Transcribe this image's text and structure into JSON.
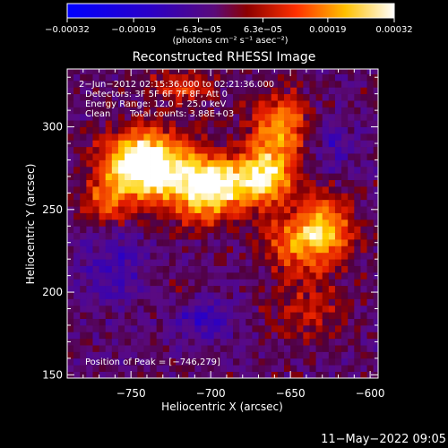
{
  "chart_data": {
    "type": "heatmap",
    "title": "Reconstructed RHESSI Image",
    "xlabel": "Heliocentric X (arcsec)",
    "ylabel": "Heliocentric Y (arcsec)",
    "xlim": [
      -790,
      -595
    ],
    "ylim": [
      148,
      335
    ],
    "x_ticks": [
      -750,
      -700,
      -650,
      -600
    ],
    "x_tick_labels": [
      "−750",
      "−700",
      "−650",
      "−600"
    ],
    "y_ticks": [
      150,
      200,
      250,
      300
    ],
    "y_tick_labels": [
      "150",
      "200",
      "250",
      "300"
    ],
    "colorbar": {
      "range": [
        -0.00032,
        0.00032
      ],
      "ticks": [
        -0.00032,
        -0.00019,
        -6.3e-05,
        6.3e-05,
        0.00019,
        0.00032
      ],
      "tick_labels": [
        "−0.00032",
        "−0.00019",
        "−6.3e−05",
        "6.3e−05",
        "0.00019",
        "0.00032"
      ],
      "unit_label": "(photons cm⁻² s⁻¹ asec⁻²)"
    },
    "annotations": [
      "2−Jun−2012 02:15:36.000 to 02:21:36.000",
      "Detectors: 3F 5F 6F 7F 8F, Att 0",
      "Energy Range: 12.0 − 25.0 keV",
      "Clean",
      "Total counts: 3.88E+03"
    ],
    "peak_text": "Position of Peak = [−746,279]",
    "peak": [
      -746,
      279
    ],
    "sources": [
      {
        "x": -746,
        "y": 279,
        "sx": 15,
        "sy": 12,
        "amp": 1.0
      },
      {
        "x": -725,
        "y": 272,
        "sx": 22,
        "sy": 16,
        "amp": 0.7
      },
      {
        "x": -700,
        "y": 258,
        "sx": 14,
        "sy": 12,
        "amp": 0.6
      },
      {
        "x": -683,
        "y": 268,
        "sx": 22,
        "sy": 9,
        "amp": 0.55
      },
      {
        "x": -655,
        "y": 300,
        "sx": 13,
        "sy": 15,
        "amp": 0.65
      },
      {
        "x": -665,
        "y": 272,
        "sx": 11,
        "sy": 14,
        "amp": 0.6
      },
      {
        "x": -628,
        "y": 238,
        "sx": 12,
        "sy": 14,
        "amp": 0.75
      },
      {
        "x": -648,
        "y": 230,
        "sx": 14,
        "sy": 12,
        "amp": 0.55
      },
      {
        "x": -720,
        "y": 325,
        "sx": 14,
        "sy": 8,
        "amp": 0.4
      },
      {
        "x": -765,
        "y": 256,
        "sx": 10,
        "sy": 10,
        "amp": 0.5
      },
      {
        "x": -640,
        "y": 190,
        "sx": 18,
        "sy": 14,
        "amp": 0.3
      },
      {
        "x": -715,
        "y": 195,
        "sx": 14,
        "sy": 10,
        "amp": 0.3
      }
    ],
    "negative_sources": [
      {
        "x": -708,
        "y": 188,
        "sx": 14,
        "sy": 10,
        "amp": -0.5
      },
      {
        "x": -760,
        "y": 215,
        "sx": 14,
        "sy": 16,
        "amp": -0.3
      },
      {
        "x": -625,
        "y": 290,
        "sx": 12,
        "sy": 12,
        "amp": -0.25
      }
    ]
  },
  "footer_timestamp": "11−May−2022 09:05"
}
